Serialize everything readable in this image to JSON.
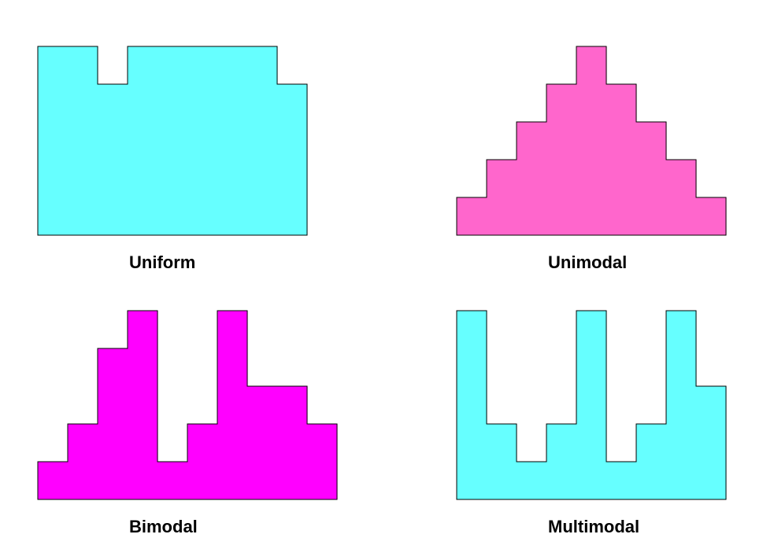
{
  "chart_data": [
    {
      "type": "bar",
      "title": "Uniform",
      "color": "#66ffff",
      "bin_count": 9,
      "values": [
        5,
        5,
        4,
        5,
        5,
        5,
        5,
        5,
        4
      ],
      "ylim": [
        0,
        5
      ]
    },
    {
      "type": "bar",
      "title": "Unimodal",
      "color": "#ff66cc",
      "bin_count": 9,
      "values": [
        1,
        2,
        3,
        4,
        5,
        4,
        3,
        2,
        1
      ],
      "ylim": [
        0,
        5
      ]
    },
    {
      "type": "bar",
      "title": "Bimodal",
      "color": "#ff00ff",
      "bin_count": 10,
      "values": [
        1,
        2,
        4,
        5,
        1,
        2,
        5,
        3,
        3,
        2
      ],
      "ylim": [
        0,
        5
      ]
    },
    {
      "type": "bar",
      "title": "Multimodal",
      "color": "#66ffff",
      "bin_count": 9,
      "values": [
        5,
        2,
        1,
        2,
        5,
        1,
        2,
        5,
        3
      ],
      "ylim": [
        0,
        5
      ]
    }
  ]
}
